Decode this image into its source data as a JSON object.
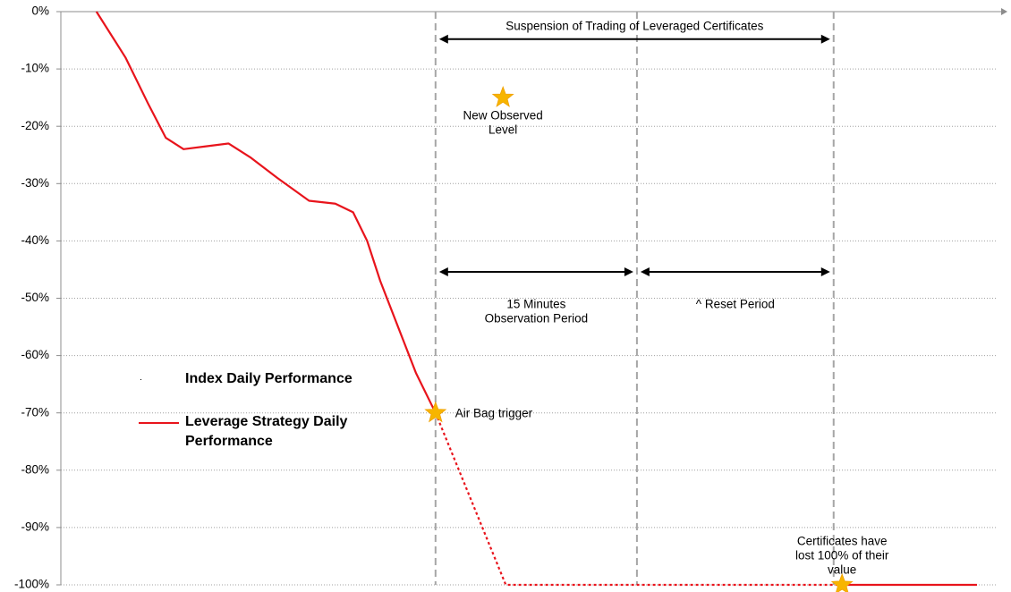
{
  "chart_data": {
    "type": "line",
    "ylim": [
      -100,
      0
    ],
    "yticks": [
      {
        "value": 0,
        "label": "0%"
      },
      {
        "value": -10,
        "label": "-10%"
      },
      {
        "value": -20,
        "label": "-20%"
      },
      {
        "value": -30,
        "label": "-30%"
      },
      {
        "value": -40,
        "label": "-40%"
      },
      {
        "value": -50,
        "label": "-50%"
      },
      {
        "value": -60,
        "label": "-60%"
      },
      {
        "value": -70,
        "label": "-70%"
      },
      {
        "value": -80,
        "label": "-80%"
      },
      {
        "value": -90,
        "label": "-90%"
      },
      {
        "value": -100,
        "label": "-100%"
      }
    ],
    "grid": true,
    "xlim": [
      0,
      100
    ],
    "x": [
      3.8,
      6.9,
      9.3,
      11.2,
      13.1,
      15.5,
      17.9,
      20.3,
      23.1,
      26.5,
      29.3,
      31.2,
      32.7,
      34.1,
      36.0,
      37.9,
      40.0,
      47.5,
      82.8,
      97.8
    ],
    "series": [
      {
        "name": "Index Daily Performance",
        "color": "#000000",
        "values": [
          null,
          null,
          null,
          null,
          null,
          null,
          null,
          null,
          null,
          null,
          null,
          null,
          null,
          null,
          null,
          null,
          null,
          null,
          null,
          null
        ]
      },
      {
        "name": "Leverage Strategy Daily Performance",
        "color": "#e8141c",
        "values": [
          0,
          -8,
          -16,
          -22,
          -24,
          -23.5,
          -23,
          -25.5,
          -29,
          -33,
          -33.5,
          -35,
          -40,
          -47,
          -55,
          -63,
          -70,
          null,
          -100,
          -100
        ]
      }
    ],
    "projection": {
      "color": "#e8141c",
      "style": "dotted",
      "values": [
        null,
        null,
        null,
        null,
        null,
        null,
        null,
        null,
        null,
        null,
        null,
        null,
        null,
        null,
        null,
        null,
        -70,
        -100,
        -100,
        null
      ]
    },
    "vlines": [
      40.0,
      61.5,
      82.5
    ],
    "arrows": [
      {
        "from": 40.0,
        "to": 82.5,
        "y": -4.8,
        "label": [
          "Suspension of  Trading of Leveraged Certificates"
        ],
        "label_position": "above"
      },
      {
        "from": 40.0,
        "to": 61.5,
        "y": -45.4,
        "label": [
          "15 Minutes",
          "Observation Period"
        ],
        "label_position": "below"
      },
      {
        "from": 61.5,
        "to": 82.5,
        "y": -45.4,
        "label": [
          "^ Reset Period"
        ],
        "label_position": "below"
      }
    ],
    "markers": [
      {
        "x": 40.0,
        "y": -70,
        "label": [
          "Air Bag trigger"
        ],
        "label_position": "right"
      },
      {
        "x": 47.2,
        "y": -15,
        "label": [
          "New Observed",
          "Level"
        ],
        "label_position": "below"
      },
      {
        "x": 83.4,
        "y": -100,
        "label": [
          "Certificates have",
          "lost 100% of their",
          "value"
        ],
        "label_position": "above"
      }
    ],
    "marker_color": "#f7b500"
  }
}
